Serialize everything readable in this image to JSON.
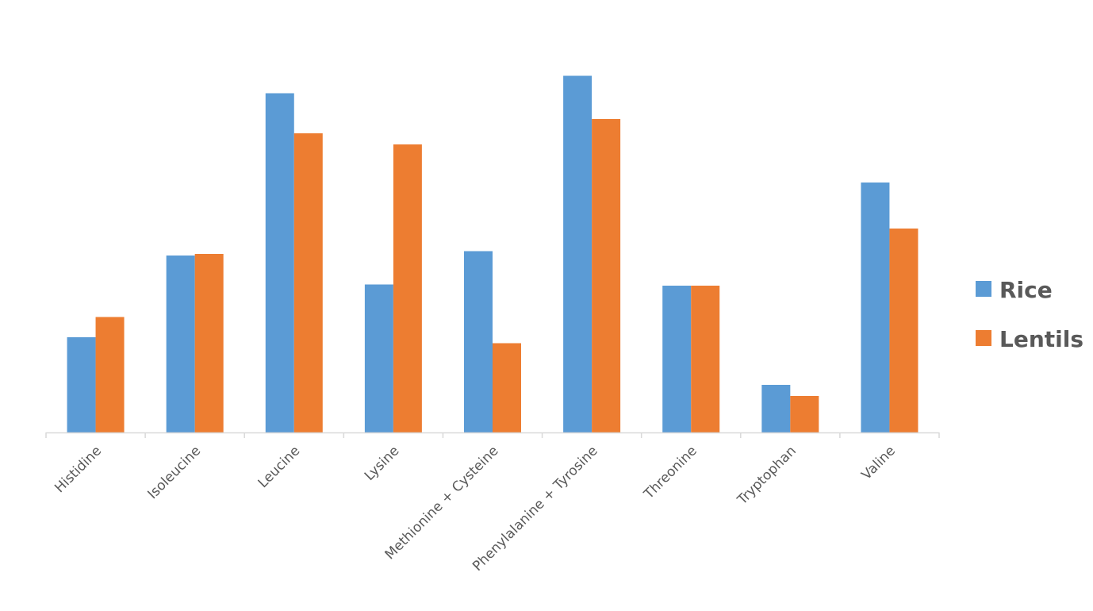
{
  "chart_data": {
    "type": "bar",
    "title": "",
    "xlabel": "",
    "ylabel": "",
    "categories": [
      "Histidine",
      "Isoleucine",
      "Leucine",
      "Lysine",
      "Methionine + Cysteine",
      "Phenylalanine + Tyrosine",
      "Threonine",
      "Tryptophan",
      "Valine"
    ],
    "series": [
      {
        "name": "Rice",
        "color": "#5B9BD5",
        "values": [
          24,
          44.6,
          85.5,
          37.3,
          45.7,
          89.9,
          37,
          12,
          63
        ]
      },
      {
        "name": "Lentils",
        "color": "#ED7D31",
        "values": [
          29.1,
          45,
          75.4,
          72.6,
          22.5,
          79,
          37,
          9.2,
          51.4
        ]
      }
    ],
    "ylim": [
      0,
      100
    ],
    "grid": false,
    "y_axis_visible": false,
    "legend": {
      "position": "right",
      "entries": [
        "Rice",
        "Lentils"
      ]
    },
    "colors": {
      "axis": "#D9D9D9",
      "text": "#595959",
      "background": "#FFFFFF"
    }
  }
}
